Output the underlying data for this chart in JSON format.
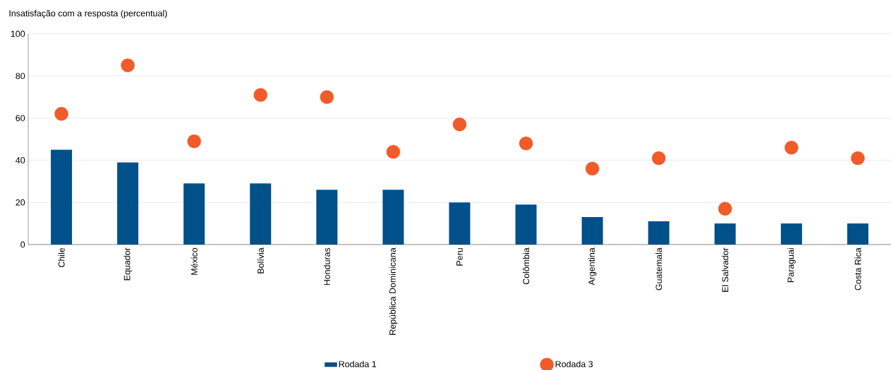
{
  "chart_data": {
    "type": "bar",
    "ylabel": "Insatisfação com a resposta (percentual)",
    "categories": [
      "Chile",
      "Equador",
      "México",
      "Bolívia",
      "Honduras",
      "República Dominicana",
      "Peru",
      "Colômbia",
      "Argentina",
      "Guatemala",
      "El Salvador",
      "Paraguai",
      "Costa Rica"
    ],
    "series": [
      {
        "name": "Rodada 1",
        "color": "#00508a",
        "values": [
          45,
          39,
          29,
          29,
          26,
          26,
          20,
          19,
          13,
          11,
          10,
          10,
          10
        ]
      },
      {
        "name": "Rodada 3",
        "type": "scatter",
        "color": "#f15a29",
        "values": [
          62,
          85,
          49,
          71,
          70,
          44,
          57,
          48,
          36,
          41,
          17,
          46,
          41
        ]
      }
    ],
    "ylim": [
      0,
      100
    ],
    "yticks": [
      0,
      20,
      40,
      60,
      80,
      100
    ],
    "grid": "y",
    "legend": "bottom"
  }
}
